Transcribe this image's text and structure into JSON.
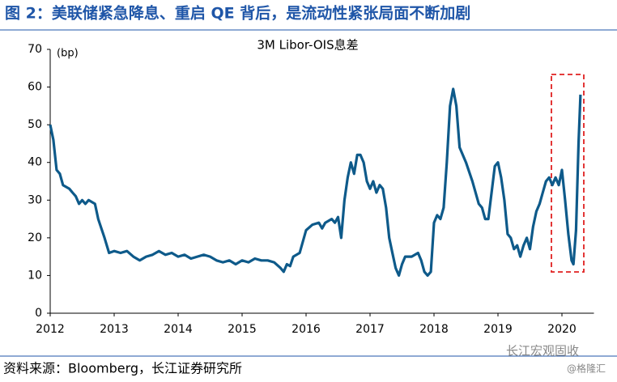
{
  "figure_title": "图 2：美联储紧急降息、重启 QE 背后，是流动性紧张局面不断加剧",
  "source": "资料来源：Bloomberg，长江证券研究所",
  "watermark": "长江宏观固收",
  "watermark_sub": "@格隆汇",
  "chart_data": {
    "type": "line",
    "title": "3M Libor-OIS息差",
    "y_label": "(bp)",
    "xlim": [
      2012,
      2020.5
    ],
    "xticks": [
      2012,
      2013,
      2014,
      2015,
      2016,
      2017,
      2018,
      2019,
      2020
    ],
    "ylim": [
      0,
      70
    ],
    "yticks": [
      0,
      10,
      20,
      30,
      40,
      50,
      60,
      70
    ],
    "x": [
      2012.0,
      2012.05,
      2012.1,
      2012.15,
      2012.2,
      2012.3,
      2012.35,
      2012.4,
      2012.45,
      2012.5,
      2012.55,
      2012.6,
      2012.7,
      2012.75,
      2012.85,
      2012.92,
      2013.0,
      2013.1,
      2013.2,
      2013.3,
      2013.4,
      2013.5,
      2013.6,
      2013.7,
      2013.8,
      2013.9,
      2014.0,
      2014.1,
      2014.2,
      2014.3,
      2014.4,
      2014.5,
      2014.6,
      2014.7,
      2014.8,
      2014.9,
      2015.0,
      2015.1,
      2015.2,
      2015.3,
      2015.4,
      2015.5,
      2015.6,
      2015.65,
      2015.7,
      2015.75,
      2015.8,
      2015.9,
      2016.0,
      2016.1,
      2016.2,
      2016.25,
      2016.3,
      2016.4,
      2016.45,
      2016.5,
      2016.55,
      2016.6,
      2016.65,
      2016.7,
      2016.75,
      2016.8,
      2016.85,
      2016.9,
      2016.95,
      2017.0,
      2017.05,
      2017.1,
      2017.15,
      2017.2,
      2017.25,
      2017.3,
      2017.35,
      2017.4,
      2017.45,
      2017.5,
      2017.55,
      2017.65,
      2017.75,
      2017.8,
      2017.85,
      2017.9,
      2017.95,
      2018.0,
      2018.05,
      2018.1,
      2018.15,
      2018.2,
      2018.25,
      2018.3,
      2018.35,
      2018.4,
      2018.5,
      2018.6,
      2018.7,
      2018.75,
      2018.8,
      2018.85,
      2018.9,
      2018.95,
      2019.0,
      2019.05,
      2019.1,
      2019.15,
      2019.2,
      2019.25,
      2019.3,
      2019.35,
      2019.4,
      2019.45,
      2019.5,
      2019.55,
      2019.6,
      2019.65,
      2019.7,
      2019.75,
      2019.8,
      2019.85,
      2019.9,
      2019.95,
      2020.0,
      2020.05,
      2020.1,
      2020.15,
      2020.18,
      2020.22,
      2020.26,
      2020.29
    ],
    "series": [
      {
        "name": "3M Libor-OIS",
        "color": "#0e5a8a",
        "values": [
          50,
          46,
          38,
          37,
          34,
          33,
          32,
          31,
          29,
          30,
          29,
          30,
          29,
          25,
          20,
          16,
          16.5,
          16,
          16.5,
          15,
          14,
          15,
          15.5,
          16.5,
          15.5,
          16,
          15,
          15.5,
          14.5,
          15,
          15.5,
          15,
          14,
          13.5,
          14,
          13,
          14,
          13.5,
          14.5,
          14,
          14,
          13.5,
          12,
          11,
          13,
          12.5,
          15,
          16,
          22,
          23.5,
          24,
          22.5,
          24,
          25,
          24,
          25.5,
          20,
          30,
          36,
          40,
          37,
          42,
          42,
          40,
          35,
          33,
          35,
          32,
          34,
          33,
          28,
          20,
          16,
          12,
          10,
          13,
          15,
          15,
          16,
          14,
          11,
          10,
          11,
          24,
          26,
          25,
          28,
          40,
          55,
          59.5,
          55,
          44,
          40,
          35,
          29,
          28,
          25,
          25,
          32,
          39,
          40,
          36,
          30,
          21,
          20,
          17,
          18,
          15,
          18,
          20,
          17,
          23,
          27,
          29,
          32,
          35,
          36,
          34,
          36,
          34,
          38,
          30,
          21,
          14,
          13,
          22,
          45,
          58
        ]
      }
    ]
  }
}
